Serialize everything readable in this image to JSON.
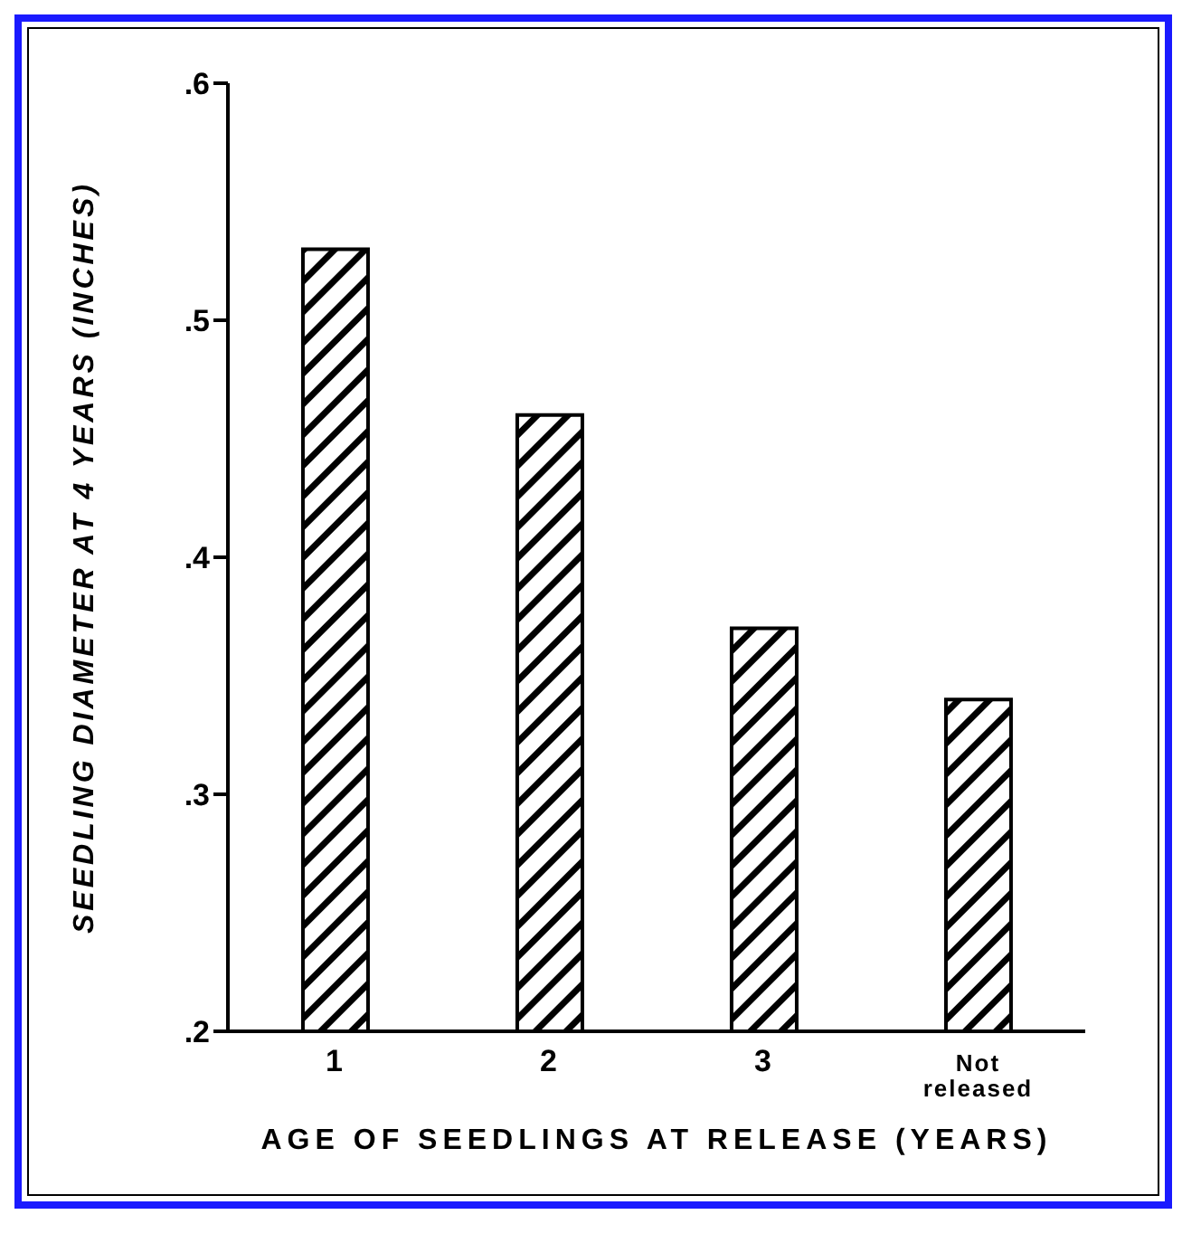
{
  "chart_data": {
    "type": "bar",
    "xlabel": "AGE OF SEEDLINGS AT RELEASE (YEARS)",
    "ylabel": "SEEDLING  DIAMETER  AT  4  YEARS (INCHES)",
    "categories": [
      "1",
      "2",
      "3",
      "Not released"
    ],
    "values": [
      0.53,
      0.46,
      0.37,
      0.34
    ],
    "color": "#000000",
    "ylim": [
      0.2,
      0.6
    ],
    "yticks": [
      {
        "value": 0.2,
        "label": ".2"
      },
      {
        "value": 0.3,
        "label": ".3"
      },
      {
        "value": 0.4,
        "label": ".4"
      },
      {
        "value": 0.5,
        "label": ".5"
      },
      {
        "value": 0.6,
        "label": ".6"
      }
    ],
    "grid": false,
    "legend": false
  }
}
